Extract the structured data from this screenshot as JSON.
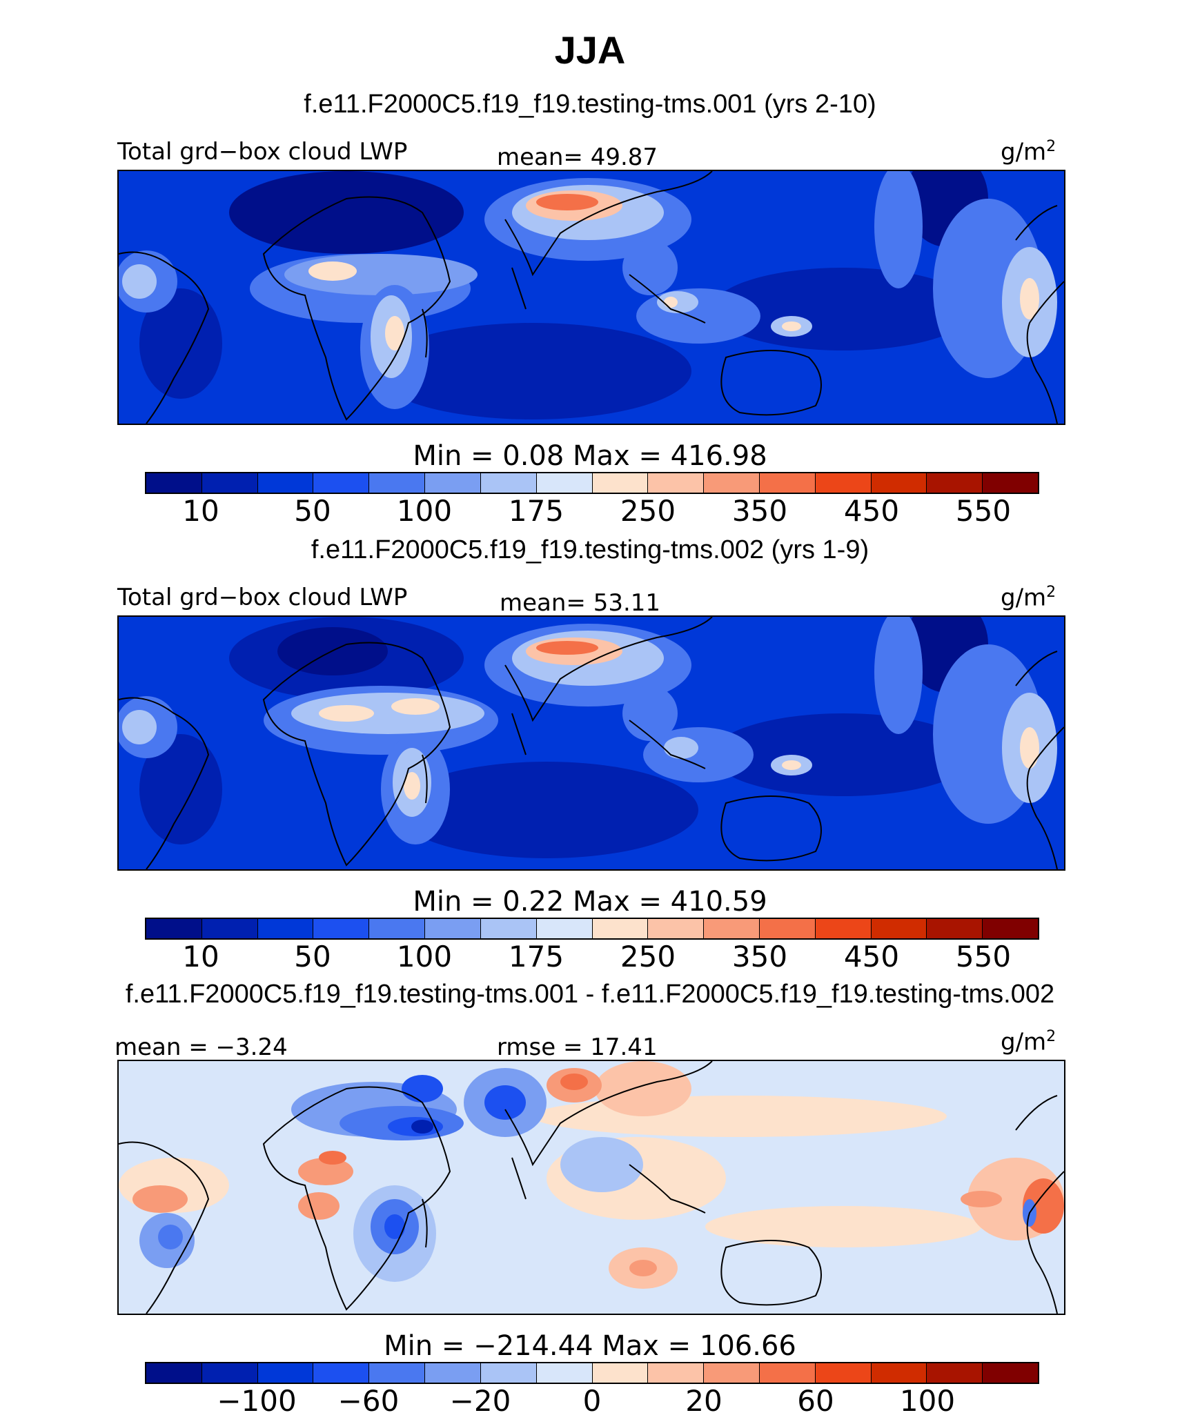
{
  "title": "JJA",
  "panels": [
    {
      "case_title": "f.e11.F2000C5.f19_f19.testing-tms.001 (yrs 2-10)",
      "left_label": "Total grd−box cloud LWP",
      "center_label": "mean=  49.87",
      "units_base": "g/m",
      "units_sup": "2",
      "minmax": "Min =    0.08  Max = 416.98",
      "colorbar_colors": [
        "#000f8a",
        "#0020b0",
        "#0038d8",
        "#1c50f0",
        "#4a78f0",
        "#7a9ef2",
        "#aac4f6",
        "#d8e6fa",
        "#fde2cc",
        "#fcc3a8",
        "#f89a78",
        "#f47048",
        "#ec4618",
        "#d02c00",
        "#a81400",
        "#800000"
      ],
      "tick_labels": [
        "10",
        "50",
        "100",
        "175",
        "250",
        "350",
        "450",
        "550"
      ]
    },
    {
      "case_title": "f.e11.F2000C5.f19_f19.testing-tms.002 (yrs 1-9)",
      "left_label": "Total grd−box cloud LWP",
      "center_label": "mean=  53.11",
      "units_base": "g/m",
      "units_sup": "2",
      "minmax": "Min =    0.22  Max = 410.59",
      "colorbar_colors": [
        "#000f8a",
        "#0020b0",
        "#0038d8",
        "#1c50f0",
        "#4a78f0",
        "#7a9ef2",
        "#aac4f6",
        "#d8e6fa",
        "#fde2cc",
        "#fcc3a8",
        "#f89a78",
        "#f47048",
        "#ec4618",
        "#d02c00",
        "#a81400",
        "#800000"
      ],
      "tick_labels": [
        "10",
        "50",
        "100",
        "175",
        "250",
        "350",
        "450",
        "550"
      ]
    },
    {
      "case_title": "f.e11.F2000C5.f19_f19.testing-tms.001 - f.e11.F2000C5.f19_f19.testing-tms.002",
      "left_label": "mean =  −3.24",
      "center_label": "rmse =   17.41",
      "units_base": "g/m",
      "units_sup": "2",
      "minmax": "Min = −214.44  Max = 106.66",
      "colorbar_colors": [
        "#000f8a",
        "#0020b0",
        "#0038d8",
        "#1c50f0",
        "#4a78f0",
        "#7a9ef2",
        "#aac4f6",
        "#d8e6fa",
        "#fde2cc",
        "#fcc3a8",
        "#f89a78",
        "#f47048",
        "#ec4618",
        "#d02c00",
        "#a81400",
        "#800000"
      ],
      "tick_labels": [
        "−100",
        "−60",
        "−20",
        "0",
        "20",
        "60",
        "100"
      ]
    }
  ]
}
